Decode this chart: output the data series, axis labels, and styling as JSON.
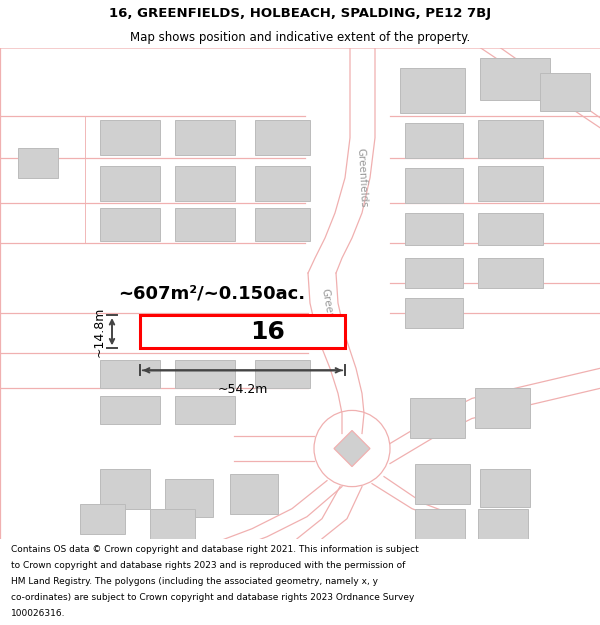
{
  "title_line1": "16, GREENFIELDS, HOLBEACH, SPALDING, PE12 7BJ",
  "title_line2": "Map shows position and indicative extent of the property.",
  "footer_lines": [
    "Contains OS data © Crown copyright and database right 2021. This information is subject",
    "to Crown copyright and database rights 2023 and is reproduced with the permission of",
    "HM Land Registry. The polygons (including the associated geometry, namely x, y",
    "co-ordinates) are subject to Crown copyright and database rights 2023 Ordnance Survey",
    "100026316."
  ],
  "map_bg": "#f5f5f5",
  "plot_fill": "#ffffff",
  "plot_border": "#ff0000",
  "road_color": "#f0b0b0",
  "road_fill": "#f5f5f5",
  "building_color": "#d0d0d0",
  "building_edge": "#bbbbbb",
  "dim_color": "#444444",
  "area_text": "~607m²/~0.150ac.",
  "label_16": "16",
  "dim_width": "~54.2m",
  "dim_height": "~14.8m",
  "street_label": "Greenfields",
  "title_fontsize": 9.5,
  "subtitle_fontsize": 8.5,
  "footer_fontsize": 6.5,
  "area_fontsize": 13,
  "label_fontsize": 18,
  "dim_fontsize": 9,
  "street_fontsize": 7.5
}
